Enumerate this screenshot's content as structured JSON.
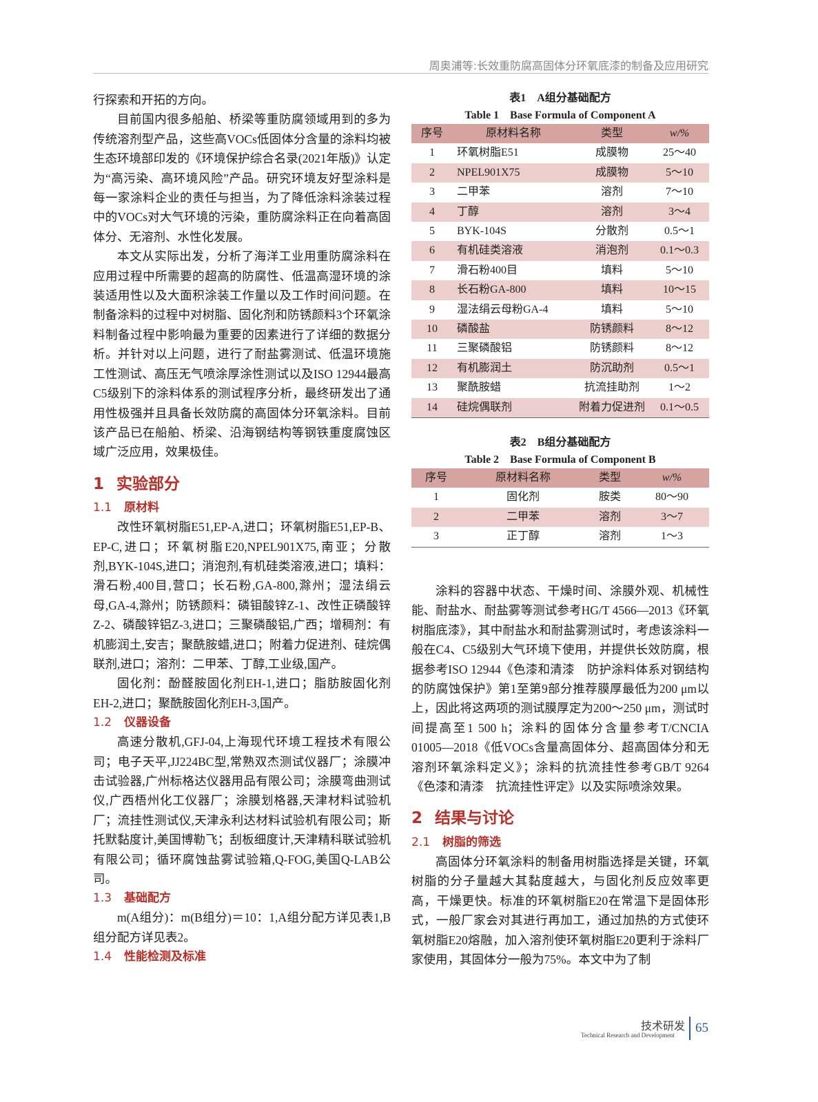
{
  "header": {
    "running_title": "周奥浦等:长效重防腐高固体分环氧底漆的制备及应用研究"
  },
  "left": {
    "p0": "行探索和开拓的方向。",
    "p1": "目前国内很多船舶、桥梁等重防腐领域用到的多为传统溶剂型产品，这些高VOCs低固体分含量的涂料均被生态环境部印发的《环境保护综合名录(2021年版)》认定为“高污染、高环境风险”产品。研究环境友好型涂料是每一家涂料企业的责任与担当，为了降低涂料涂装过程中的VOCs对大气环境的污染，重防腐涂料正在向着高固体分、无溶剂、水性化发展。",
    "p2": "本文从实际出发，分析了海洋工业用重防腐涂料在应用过程中所需要的超高的防腐性、低温高湿环境的涂装适用性以及大面积涂装工作量以及工作时间问题。在制备涂料的过程中对树脂、固化剂和防锈颜料3个环氧涂料制备过程中影响最为重要的因素进行了详细的数据分析。并针对以上问题，进行了耐盐雾测试、低温环境施工性测试、高压无气喷涂厚涂性测试以及ISO 12944最高C5级别下的涂料体系的测试程序分析，最终研发出了通用性极强并且具备长效防腐的高固体分环氧涂料。目前该产品已在船舶、桥梁、沿海钢结构等钢铁重度腐蚀区域广泛应用，效果极佳。",
    "s1_num": "1",
    "s1_title": "实验部分",
    "s11_num": "1.1",
    "s11_title": "原材料",
    "p3": "改性环氧树脂E51,EP-A,进口；环氧树脂E51,EP-B、EP-C,进口；环氧树脂E20,NPEL901X75,南亚；分散剂,BYK-104S,进口；消泡剂,有机硅类溶液,进口；填料：滑石粉,400目,营口；长石粉,GA-800,滁州；湿法绢云母,GA-4,滁州；防锈颜料：磷钼酸锌Z-1、改性正磷酸锌Z-2、磷酸锌铝Z-3,进口；三聚磷酸铝,广西；增稠剂：有机膨润土,安吉；聚酰胺蜡,进口；附着力促进剂、硅烷偶联剂,进口；溶剂：二甲苯、丁醇,工业级,国产。",
    "p4": "固化剂：酚醛胺固化剂EH-1,进口；脂肪胺固化剂EH-2,进口；聚酰胺固化剂EH-3,国产。",
    "s12_num": "1.2",
    "s12_title": "仪器设备",
    "p5": "高速分散机,GFJ-04,上海现代环境工程技术有限公司；电子天平,JJ224BC型,常熟双杰测试仪器厂；涂膜冲击试验器,广州标格达仪器用品有限公司；涂膜弯曲测试仪,广西梧州化工仪器厂；涂膜划格器,天津材料试验机厂；流挂性测试仪,天津永利达材料试验机有限公司；斯托默黏度计,美国博勒飞；刮板细度计,天津精科联试验机有限公司；循环腐蚀盐雾试验箱,Q-FOG,美国Q-LAB公司。",
    "s13_num": "1.3",
    "s13_title": "基础配方",
    "p6": "m(A组分)：m(B组分)＝10：1,A组分配方详见表1,B组分配方详见表2。",
    "s14_num": "1.4",
    "s14_title": "性能检测及标准"
  },
  "table1": {
    "caption_cn": "表1　A组分基础配方",
    "caption_en": "Table 1　Base Formula of Component A",
    "headers": [
      "序号",
      "原材料名称",
      "类型",
      "w/%"
    ],
    "rows": [
      [
        "1",
        "环氧树脂E51",
        "成膜物",
        "25～40"
      ],
      [
        "2",
        "NPEL901X75",
        "成膜物",
        "5～10"
      ],
      [
        "3",
        "二甲苯",
        "溶剂",
        "7～10"
      ],
      [
        "4",
        "丁醇",
        "溶剂",
        "3～4"
      ],
      [
        "5",
        "BYK-104S",
        "分散剂",
        "0.5～1"
      ],
      [
        "6",
        "有机硅类溶液",
        "消泡剂",
        "0.1～0.3"
      ],
      [
        "7",
        "滑石粉400目",
        "填料",
        "5～10"
      ],
      [
        "8",
        "长石粉GA-800",
        "填料",
        "10～15"
      ],
      [
        "9",
        "湿法绢云母粉GA-4",
        "填料",
        "5～10"
      ],
      [
        "10",
        "磷酸盐",
        "防锈颜料",
        "8～12"
      ],
      [
        "11",
        "三聚磷酸铝",
        "防锈颜料",
        "8～12"
      ],
      [
        "12",
        "有机膨润土",
        "防沉助剂",
        "0.5～1"
      ],
      [
        "13",
        "聚酰胺蜡",
        "抗流挂助剂",
        "1～2"
      ],
      [
        "14",
        "硅烷偶联剂",
        "附着力促进剂",
        "0.1～0.5"
      ]
    ]
  },
  "table2": {
    "caption_cn": "表2　B组分基础配方",
    "caption_en": "Table 2　Base Formula of Component B",
    "headers": [
      "序号",
      "原材料名称",
      "类型",
      "w/%"
    ],
    "rows": [
      [
        "1",
        "固化剂",
        "胺类",
        "80～90"
      ],
      [
        "2",
        "二甲苯",
        "溶剂",
        "3～7"
      ],
      [
        "3",
        "正丁醇",
        "溶剂",
        "1～3"
      ]
    ]
  },
  "right": {
    "p1": "涂料的容器中状态、干燥时间、涂膜外观、机械性能、耐盐水、耐盐雾等测试参考HG/T 4566—2013《环氧树脂底漆》，其中耐盐水和耐盐雾测试时，考虑该涂料一般在C4、C5级别大气环境下使用，并提供长效防腐，根据参考ISO 12944《色漆和清漆　防护涂料体系对钢结构的防腐蚀保护》第1至第9部分推荐膜厚最低为200 μm以上，因此将这两项的测试膜厚定为200～250 μm，测试时间提高至1 500 h；涂料的固体分含量参考T/CNCIA 01005—2018《低VOCs含量高固体分、超高固体分和无溶剂环氧涂料定义》；涂料的抗流挂性参考GB/T 9264《色漆和清漆　抗流挂性评定》以及实际喷涂效果。",
    "s2_num": "2",
    "s2_title": "结果与讨论",
    "s21_num": "2.1",
    "s21_title": "树脂的筛选",
    "p2": "高固体分环氧涂料的制备用树脂选择是关键，环氧树脂的分子量越大其黏度越大，与固化剂反应效率更高，干燥更快。标准的环氧树脂E20在常温下是固体形式，一般厂家会对其进行再加工，通过加热的方式使环氧树脂E20熔融，加入溶剂使环氧树脂E20更利于涂料厂家使用，其固体分一般为75%。本文中为了制"
  },
  "footer": {
    "section_cn": "技术研发",
    "section_en": "Technical Research and Development",
    "page": "65"
  },
  "colors": {
    "accent_red": "#b5302a",
    "table_header": "#d5a3a0",
    "table_stripe": "#eccfcd",
    "page_blue": "#2a5a9a"
  }
}
